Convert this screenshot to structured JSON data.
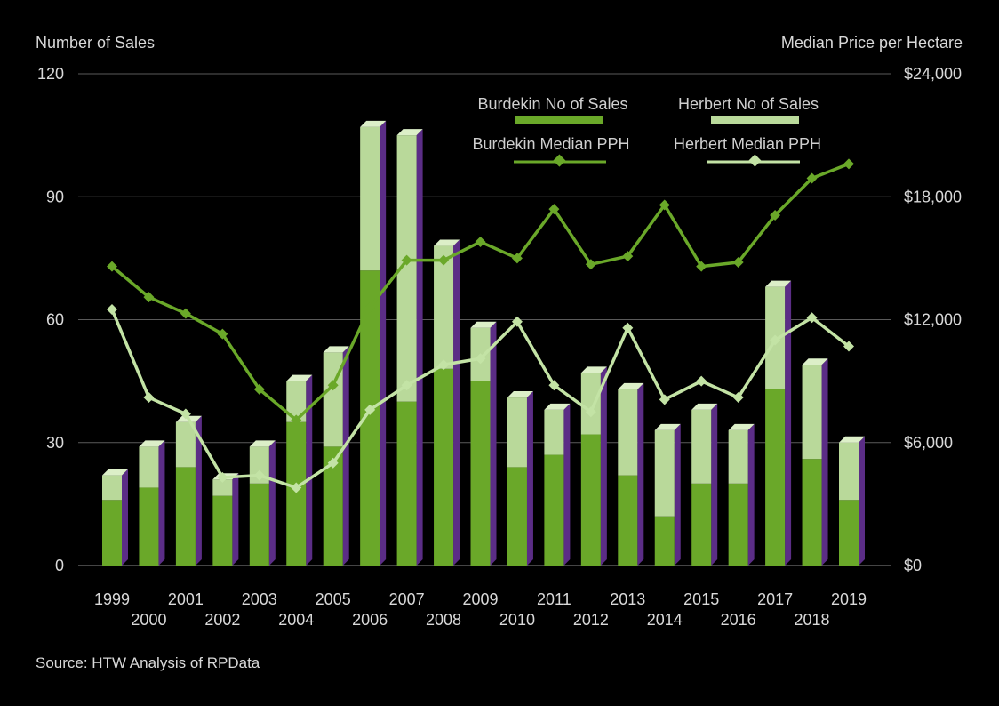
{
  "chart_data": {
    "type": "bar",
    "title": "",
    "source": "Source: HTW Analysis of RPData",
    "left_axis": {
      "label": "Number of Sales",
      "range": [
        0,
        120
      ],
      "ticks": [
        0,
        30,
        60,
        90,
        120
      ],
      "tick_labels": [
        "0",
        "30",
        "60",
        "90",
        "120"
      ]
    },
    "right_axis": {
      "label": "Median Price per Hectare",
      "range": [
        0,
        24000
      ],
      "ticks": [
        0,
        6000,
        12000,
        18000,
        24000
      ],
      "tick_labels": [
        "$0",
        "$6,000",
        "$12,000",
        "$18,000",
        "$24,000"
      ]
    },
    "grid": "horizontal",
    "legend_position": "top-right",
    "categories": [
      "1999",
      "2000",
      "2001",
      "2002",
      "2003",
      "2004",
      "2005",
      "2006",
      "2007",
      "2008",
      "2009",
      "2010",
      "2011",
      "2012",
      "2013",
      "2014",
      "2015",
      "2016",
      "2017",
      "2018",
      "2019"
    ],
    "series": [
      {
        "name": "Burdekin No of Sales",
        "type": "stacked-bar",
        "axis": "left",
        "color": "#6aa829",
        "values": [
          16,
          19,
          24,
          17,
          20,
          35,
          29,
          72,
          40,
          48,
          45,
          24,
          27,
          32,
          22,
          12,
          20,
          20,
          43,
          26,
          16
        ]
      },
      {
        "name": "Herbert No of Sales",
        "type": "stacked-bar",
        "axis": "left",
        "color": "#b9d99a",
        "values": [
          6,
          10,
          11,
          4,
          9,
          10,
          23,
          35,
          65,
          30,
          13,
          17,
          11,
          15,
          21,
          21,
          18,
          13,
          25,
          23,
          14
        ]
      },
      {
        "name": "Burdekin Median PPH",
        "type": "line",
        "axis": "right",
        "color": "#6aa829",
        "values": [
          14600,
          13100,
          12300,
          11300,
          8600,
          7100,
          8800,
          12600,
          14900,
          14900,
          15800,
          15000,
          17400,
          14700,
          15100,
          17600,
          14600,
          14800,
          17100,
          18900,
          19600
        ]
      },
      {
        "name": "Herbert Median PPH",
        "type": "line",
        "axis": "right",
        "color": "#c3e3a5",
        "values": [
          12500,
          8200,
          7400,
          4300,
          4400,
          3800,
          5000,
          7600,
          8800,
          9800,
          10100,
          11900,
          8800,
          7500,
          11600,
          8100,
          9000,
          8200,
          11000,
          12100,
          10700
        ]
      }
    ],
    "colors": {
      "background": "#000000",
      "bar_side": "#5b2d86",
      "bar_top_dark": "#8fc45a",
      "bar_top_light": "#dcefc8",
      "gridline": "#5a5a5a"
    }
  }
}
